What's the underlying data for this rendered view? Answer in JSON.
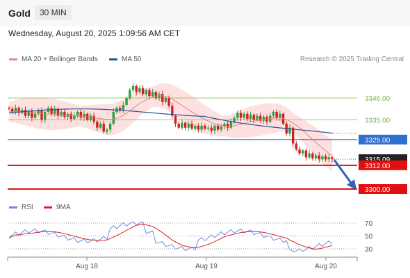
{
  "header": {
    "title": "Gold",
    "timeframe": "30 MIN"
  },
  "datetime": "Wednesday, August 20, 2025 1:09:56 AM CET",
  "legend": {
    "ma20": {
      "label": "MA 20 + Bollinger Bands",
      "color": "#f08080"
    },
    "ma50": {
      "label": "MA 50",
      "color": "#2f5597"
    },
    "research": "Research © 2025 Trading Central"
  },
  "rsi_legend": {
    "rsi": {
      "label": "RSI",
      "color": "#6a8fe0"
    },
    "ma9": {
      "label": "9MA",
      "color": "#e02020"
    }
  },
  "chart_data": [
    {
      "type": "candlestick",
      "x_labels": [
        "Aug 18",
        "Aug 19",
        "Aug 20"
      ],
      "levels": [
        {
          "value": 3346.0,
          "label": "3346.00",
          "style": "green"
        },
        {
          "value": 3335.0,
          "label": "3335.00",
          "style": "green"
        },
        {
          "value": 3325.0,
          "label": "3325.00",
          "style": "blue"
        },
        {
          "value": 3315.09,
          "label": "3315.09",
          "style": "price"
        },
        {
          "value": 3312.0,
          "label": "3312.00",
          "style": "red"
        },
        {
          "value": 3300.0,
          "label": "3300.00",
          "style": "red"
        }
      ],
      "closes": [
        3340.5,
        3339,
        3341,
        3338.5,
        3340,
        3337,
        3339.5,
        3336,
        3338,
        3340,
        3335,
        3339,
        3341,
        3338,
        3340.5,
        3337,
        3339,
        3336.5,
        3338,
        3335.5,
        3337,
        3339,
        3336,
        3338,
        3335,
        3337,
        3334,
        3331,
        3333,
        3329,
        3330,
        3333,
        3339,
        3341,
        3340,
        3342.5,
        3346,
        3350,
        3352,
        3349,
        3351,
        3348,
        3350,
        3347,
        3349,
        3346,
        3348,
        3344,
        3346,
        3342,
        3337,
        3333,
        3331,
        3333.5,
        3331,
        3333,
        3330.5,
        3332,
        3330,
        3332,
        3330.5,
        3331,
        3329.5,
        3332,
        3330,
        3331.5,
        3333,
        3331,
        3334,
        3336,
        3338.5,
        3336,
        3338,
        3335.5,
        3337.5,
        3335,
        3337,
        3334.5,
        3336.5,
        3334,
        3337,
        3339,
        3336,
        3338,
        3333,
        3328,
        3331,
        3323,
        3320,
        3318,
        3319.5,
        3316,
        3318,
        3315.5,
        3317,
        3315,
        3316.5,
        3315,
        3316,
        3315.09
      ],
      "ma20": [
        3339,
        3339,
        3339.2,
        3339.3,
        3339.2,
        3339.1,
        3339,
        3338.8,
        3338.6,
        3338.4,
        3338.2,
        3338,
        3337.8,
        3337.7,
        3337.6,
        3337.5,
        3337.4,
        3337.3,
        3337.2,
        3337.1,
        3337,
        3336.9,
        3336.8,
        3336.6,
        3336.4,
        3336.2,
        3336,
        3335.8,
        3335.6,
        3335.4,
        3335.2,
        3335.1,
        3335.3,
        3335.8,
        3336.5,
        3337.3,
        3338.3,
        3339.5,
        3340.8,
        3342,
        3343.2,
        3344.2,
        3345,
        3345.8,
        3346.5,
        3347,
        3347.2,
        3347.1,
        3346.8,
        3346.2,
        3345.4,
        3344.4,
        3343.3,
        3342.3,
        3341.2,
        3340.1,
        3339,
        3338,
        3337,
        3336,
        3335.2,
        3334.4,
        3333.6,
        3333,
        3332.4,
        3332,
        3331.8,
        3331.7,
        3331.8,
        3332,
        3332.4,
        3332.8,
        3333.2,
        3333.6,
        3334,
        3334.3,
        3334.6,
        3334.9,
        3335.2,
        3335.4,
        3335.6,
        3335.8,
        3335.9,
        3336,
        3335.6,
        3335,
        3334.3,
        3333.3,
        3332.2,
        3331,
        3329.6,
        3328.1,
        3326.6,
        3325.1,
        3323.6,
        3322.1,
        3320.7,
        3319.3,
        3318,
        3317
      ]
    },
    {
      "type": "line",
      "name": "RSI",
      "yticks": [
        70,
        50,
        30
      ],
      "ylim": [
        25,
        75
      ]
    }
  ]
}
